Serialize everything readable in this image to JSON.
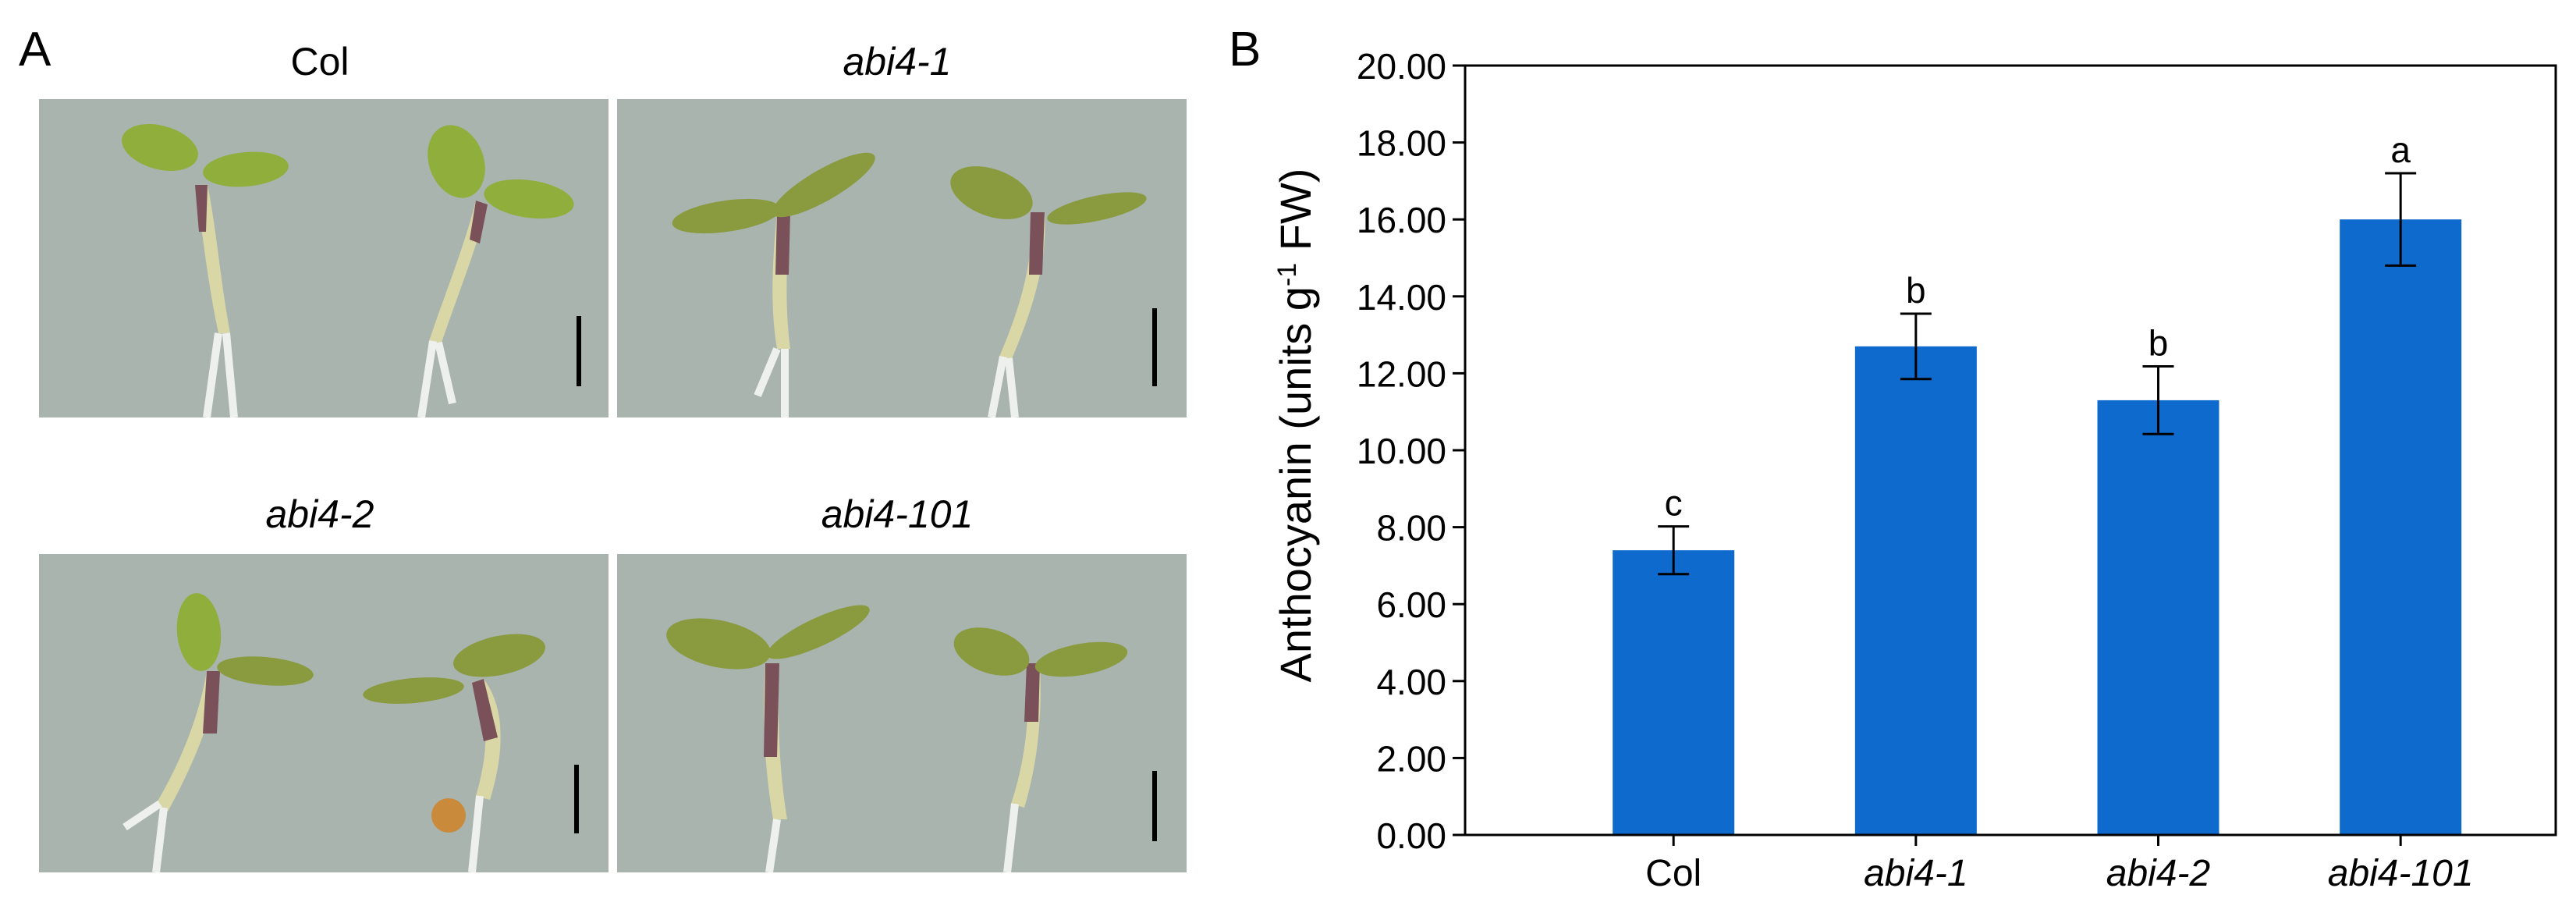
{
  "panels": {
    "a_letter": "A",
    "b_letter": "B"
  },
  "photos": [
    {
      "label": "Col",
      "italic": false
    },
    {
      "label": "abi4-1",
      "italic": true
    },
    {
      "label": "abi4-2",
      "italic": true
    },
    {
      "label": "abi4-101",
      "italic": true
    }
  ],
  "colors": {
    "bar": "#0f6acd",
    "photo_bg": "#a9b4ae",
    "cotyledon": "#8fae3c",
    "hypocotyl": "#d9d7a6",
    "stem_purple": "#7a5159"
  },
  "chart_data": {
    "type": "bar",
    "categories": [
      "Col",
      "abi4-1",
      "abi4-2",
      "abi4-101"
    ],
    "category_italic": [
      false,
      true,
      true,
      true
    ],
    "values": [
      7.4,
      12.7,
      11.3,
      16.0
    ],
    "errors": [
      0.62,
      0.85,
      0.88,
      1.2
    ],
    "significance": [
      "c",
      "b",
      "b",
      "a"
    ],
    "ylabel_main": "Anthocyanin (units g",
    "ylabel_sup": "-1",
    "ylabel_tail": " FW)",
    "ylim": [
      0,
      20
    ],
    "yticks": [
      "0.00",
      "2.00",
      "4.00",
      "6.00",
      "8.00",
      "10.00",
      "12.00",
      "14.00",
      "16.00",
      "18.00",
      "20.00"
    ],
    "ytick_values": [
      0,
      2,
      4,
      6,
      8,
      10,
      12,
      14,
      16,
      18,
      20
    ]
  }
}
